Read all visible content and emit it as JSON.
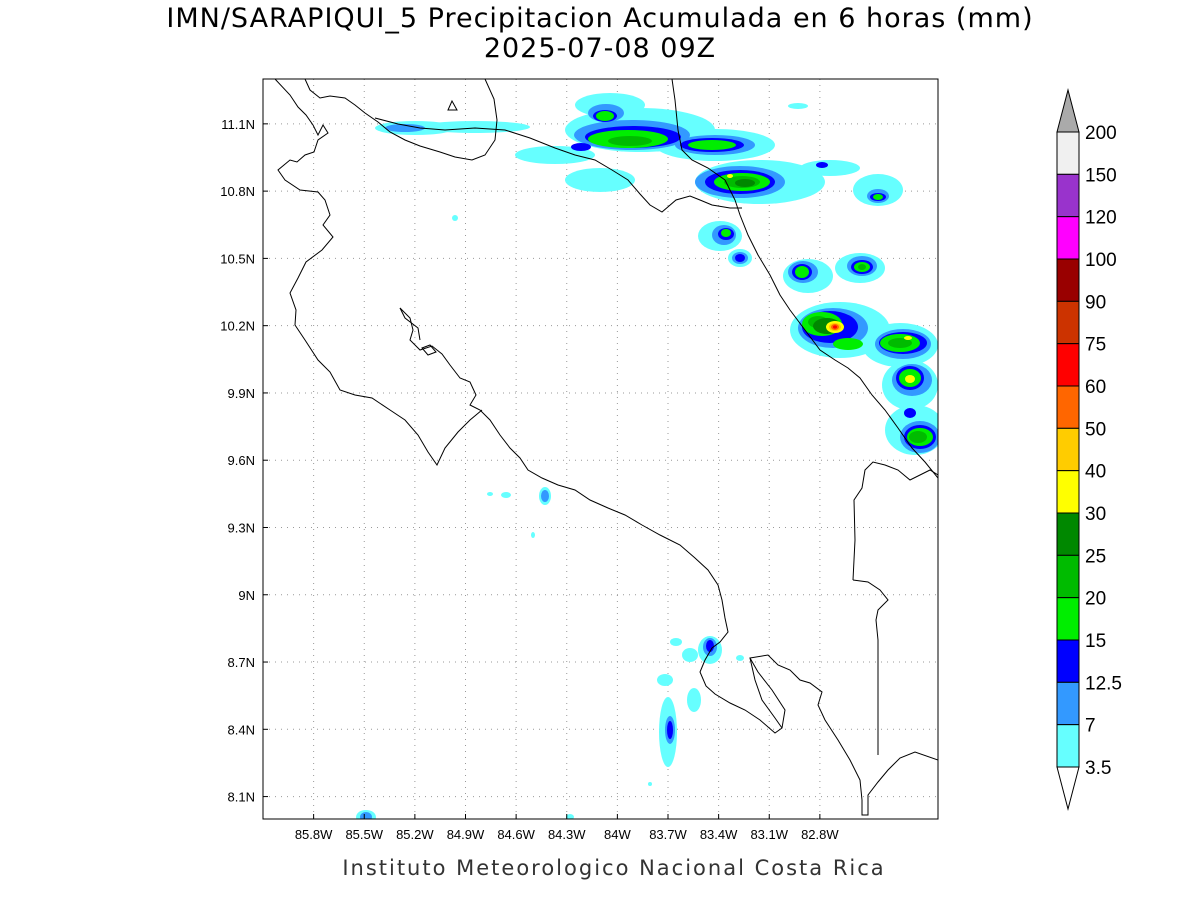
{
  "title": {
    "line1": "IMN/SARAPIQUI_5 Precipitacion Acumulada en 6 horas (mm)",
    "line2": "2025-07-08 09Z"
  },
  "footer": "Instituto Meteorologico Nacional Costa Rica",
  "map": {
    "lon_range": [
      -86.1,
      -82.1
    ],
    "lat_range": [
      8.0,
      11.3
    ],
    "x_ticks": [
      "85.8W",
      "85.5W",
      "85.2W",
      "84.9W",
      "84.6W",
      "84.3W",
      "84W",
      "83.7W",
      "83.4W",
      "83.1W",
      "82.8W"
    ],
    "y_ticks": [
      "11.1N",
      "10.8N",
      "10.5N",
      "10.2N",
      "9.9N",
      "9.6N",
      "9.3N",
      "9N",
      "8.7N",
      "8.4N",
      "8.1N"
    ],
    "grid": "dotted"
  },
  "colorbar": {
    "levels": [
      "3.5",
      "7",
      "12.5",
      "15",
      "20",
      "25",
      "30",
      "40",
      "50",
      "60",
      "75",
      "90",
      "100",
      "120",
      "150",
      "200"
    ],
    "colors": [
      "#66ffff",
      "#3399ff",
      "#0000ff",
      "#00ee00",
      "#00bb00",
      "#008800",
      "#ffff00",
      "#ffcc00",
      "#ff6600",
      "#ff0000",
      "#cc3300",
      "#990000",
      "#ff00ff",
      "#9933cc",
      "#f0f0f0",
      "#aaaaaa"
    ],
    "color_index_names": [
      "cyan",
      "light-blue",
      "blue",
      "green",
      "medium-green",
      "dark-green",
      "yellow",
      "gold",
      "orange",
      "red",
      "red-orange",
      "dark-red",
      "magenta",
      "purple",
      "white",
      "grey"
    ]
  }
}
